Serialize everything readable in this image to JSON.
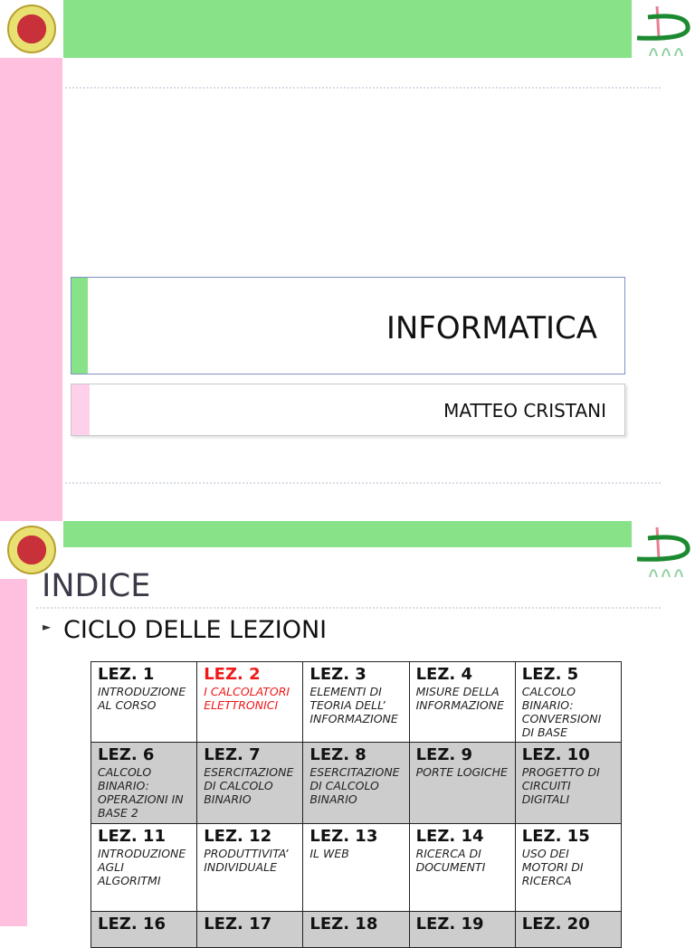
{
  "slide1": {
    "title": "INFORMATICA",
    "subtitle": "MATTEO CRISTANI"
  },
  "slide2": {
    "heading": "INDICE",
    "bullet": "CICLO DELLE LEZIONI",
    "lessons": [
      [
        {
          "label": "LEZ. 1",
          "desc": "INTRODUZIONE AL CORSO"
        },
        {
          "label": "LEZ. 2",
          "desc": "I CALCOLATORI ELETTRONICI",
          "highlight": true
        },
        {
          "label": "LEZ. 3",
          "desc": "ELEMENTI DI TEORIA DELL’ INFORMAZIONE"
        },
        {
          "label": "LEZ. 4",
          "desc": "MISURE DELLA INFORMAZIONE"
        },
        {
          "label": "LEZ. 5",
          "desc": "CALCOLO BINARIO: CONVERSIONI DI BASE"
        }
      ],
      [
        {
          "label": "LEZ. 6",
          "desc": "CALCOLO BINARIO: OPERAZIONI IN BASE 2"
        },
        {
          "label": "LEZ. 7",
          "desc": "ESERCITAZIONE DI CALCOLO BINARIO"
        },
        {
          "label": "LEZ. 8",
          "desc": "ESERCITAZIONE DI CALCOLO BINARIO"
        },
        {
          "label": "LEZ. 9",
          "desc": "PORTE LOGICHE"
        },
        {
          "label": "LEZ. 10",
          "desc": "PROGETTO DI CIRCUITI DIGITALI"
        }
      ],
      [
        {
          "label": "LEZ. 11",
          "desc": "INTRODUZIONE AGLI ALGORITMI"
        },
        {
          "label": "LEZ. 12",
          "desc": "PRODUTTIVITA’ INDIVIDUALE"
        },
        {
          "label": "LEZ. 13",
          "desc": "IL WEB"
        },
        {
          "label": "LEZ. 14",
          "desc": "RICERCA DI DOCUMENTI"
        },
        {
          "label": "LEZ. 15",
          "desc": "USO DEI MOTORI DI RICERCA"
        }
      ],
      [
        {
          "label": "LEZ. 16"
        },
        {
          "label": "LEZ. 17"
        },
        {
          "label": "LEZ. 18"
        },
        {
          "label": "LEZ. 19"
        },
        {
          "label": "LEZ. 20"
        }
      ]
    ]
  },
  "colors": {
    "green": "#88e288",
    "pink": "#ffc0e0",
    "highlight": "#f01818"
  }
}
